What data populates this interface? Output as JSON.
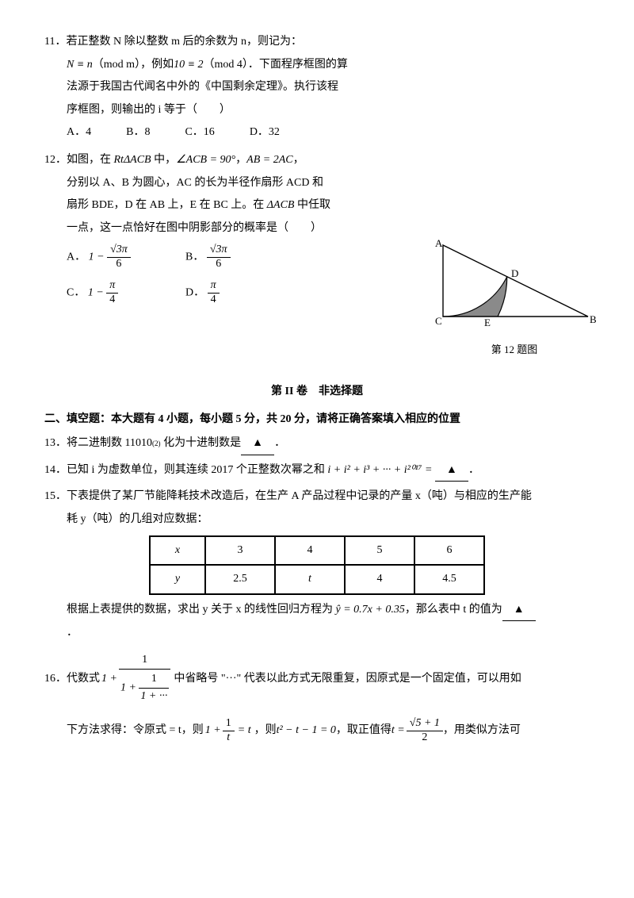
{
  "q11": {
    "num": "11．",
    "l1": "若正整数 N 除以整数 m 后的余数为 n，则记为：",
    "l2_a": "N ≡ n",
    "l2_b": "（mod m）",
    "l2_c": "，例如",
    "l2_d": "10 ≡ 2",
    "l2_e": "（mod 4）",
    "l2_f": "．下面程序框图的算",
    "l3": "法源于我国古代闻名中外的《中国剩余定理》。执行该程",
    "l4": "序框图，则输出的 i 等于（　　）",
    "opts": {
      "A": "A．4",
      "B": "B．8",
      "C": "C．16",
      "D": "D．32"
    }
  },
  "q12": {
    "num": "12．",
    "l1a": "如图，在 ",
    "l1b": "RtΔACB",
    "l1c": " 中，",
    "l1d": "∠ACB = 90°",
    "l1e": "，",
    "l1f": "AB = 2AC",
    "l1g": "，",
    "l2": "分别以 A、B 为圆心，AC 的长为半径作扇形 ACD 和",
    "l3a": "扇形 BDE，D 在 AB 上，E 在 BC 上。在 ",
    "l3b": "ΔACB",
    "l3c": " 中任取",
    "l4": "一点，这一点恰好在图中阴影部分的概率是（　　）",
    "opts": {
      "A_pre": "A．",
      "A_one": "1 −",
      "A_num": "√3π",
      "A_den": "6",
      "B_pre": "B．",
      "B_num": "√3π",
      "B_den": "6",
      "C_pre": "C．",
      "C_one": "1 −",
      "C_num": "π",
      "C_den": "4",
      "D_pre": "D．",
      "D_num": "π",
      "D_den": "4"
    },
    "figure": {
      "A": "A",
      "B": "B",
      "C": "C",
      "D": "D",
      "E": "E",
      "caption": "第 12 题图",
      "fill": "#8a8a8a",
      "stroke": "#000"
    }
  },
  "sec2": {
    "title": "第 II 卷　非选择题",
    "sub": "二、填空题：本大题有 4 小题，每小题 5 分，共 20 分，请将正确答案填入相应的位置"
  },
  "q13": {
    "num": "13．",
    "l1": "将二进制数 11010",
    "sub2": "(2)",
    "l2": " 化为十进制数是",
    "blank": "▲",
    "end": "．"
  },
  "q14": {
    "num": "14．",
    "l1": "已知 i 为虚数单位，则其连续 2017 个正整数次幂之和 ",
    "expr": "i + i² + i³ + ··· + i²⁰¹⁷ =",
    "blank": "▲",
    "end": "．"
  },
  "q15": {
    "num": "15．",
    "l1": "下表提供了某厂节能降耗技术改造后，在生产 A 产品过程中记录的产量 x（吨）与相应的生产能",
    "l2": "耗 y（吨）的几组对应数据：",
    "table": {
      "xh": "x",
      "yh": "y",
      "x": [
        "3",
        "4",
        "5",
        "6"
      ],
      "y": [
        "2.5",
        "t",
        "4",
        "4.5"
      ]
    },
    "l3a": "根据上表提供的数据，求出 y 关于 x 的线性回归方程为 ",
    "l3b": "ŷ = 0.7x + 0.35",
    "l3c": "，那么表中 t 的值为",
    "blank": "▲",
    "end": "．"
  },
  "q16": {
    "num": "16．",
    "l1a": "代数式",
    "l1_one": "1 +",
    "l1_n1": "1",
    "l1_n2": "1",
    "l1_d2a": "1 +",
    "l1_d2b": "1 + ···",
    "l1b": "中省略号 \"···\" 代表以此方式无限重复，因原式是一个固定值，可以用如",
    "l2a": "下方法求得：令原式 = t，则",
    "l2_one": "1 +",
    "l2_num": "1",
    "l2_den": "t",
    "l2_eq": "= t",
    "l2b": "，则 ",
    "l2c": "t² − t − 1 = 0",
    "l2d": "，取正值得 ",
    "l2_tnum": "√5 + 1",
    "l2_tden": "2",
    "l2_teq": "t =",
    "l2e": "，用类似方法可"
  }
}
